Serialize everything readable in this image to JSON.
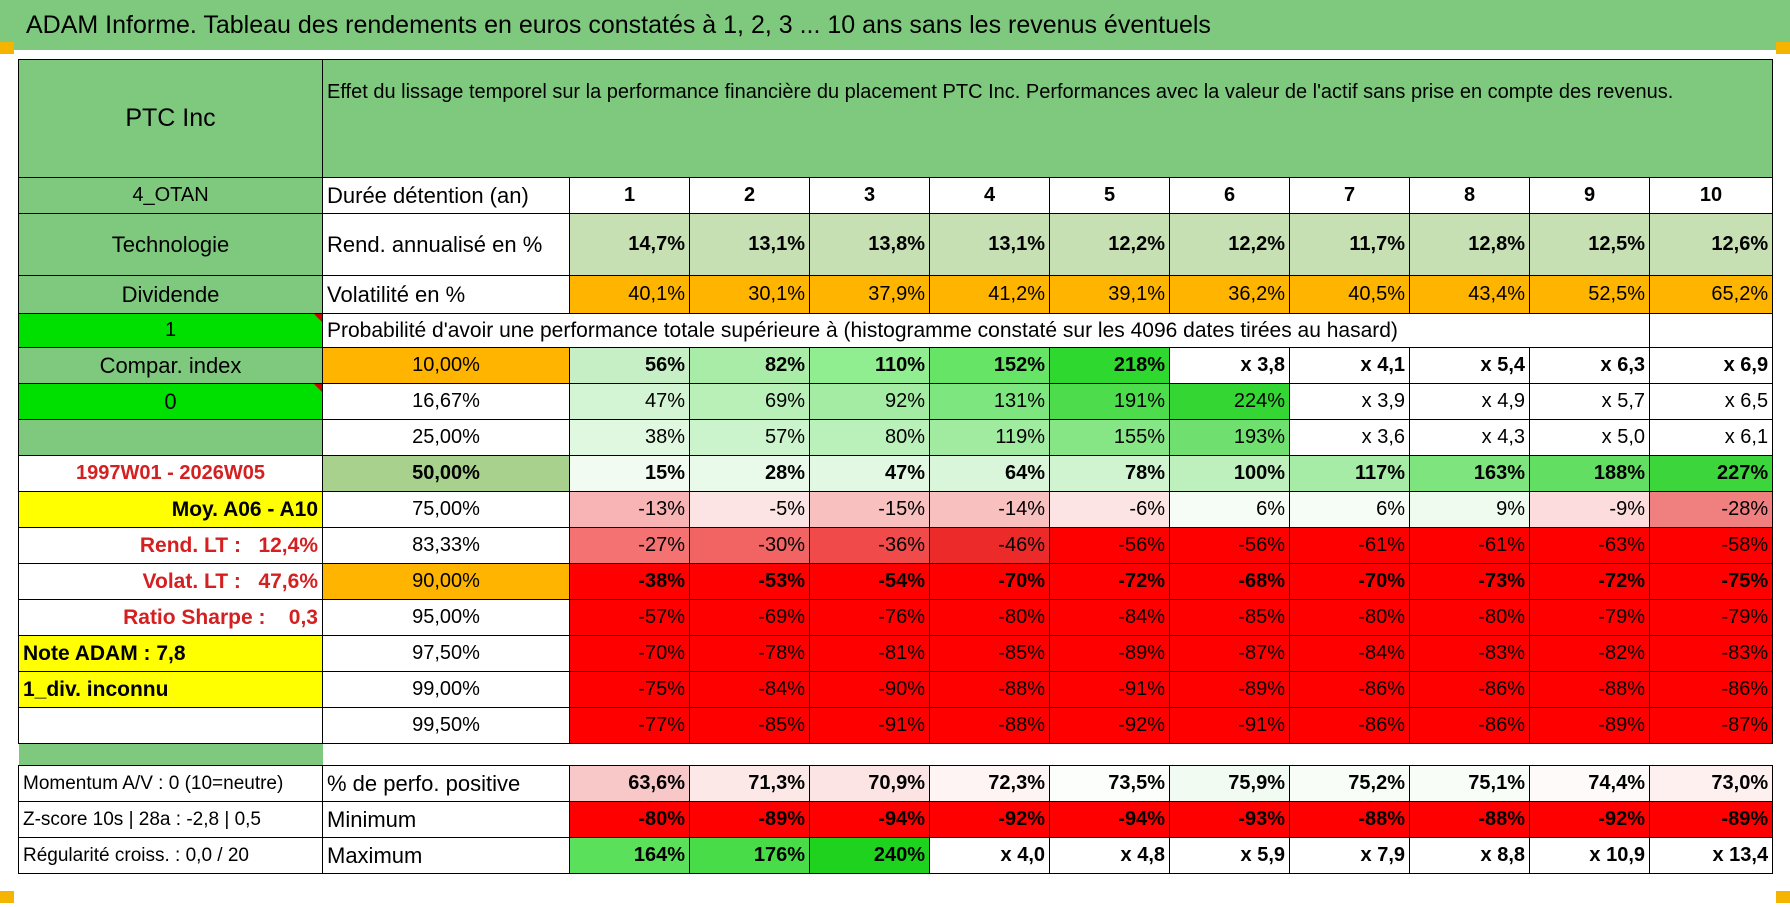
{
  "title": "ADAM Informe. Tableau des rendements en euros constatés à 1, 2, 3 ... 10 ans sans les revenus éventuels",
  "header": {
    "company": "PTC Inc",
    "description": "Effet du lissage temporel sur la performance financière du placement PTC Inc. Performances avec la valeur de l'actif sans prise en compte des revenus."
  },
  "side": {
    "code": "4_OTAN",
    "sector": "Technologie",
    "dividend_label": "Dividende",
    "flag1": "1",
    "compar_index": "Compar. index",
    "flag0": "0",
    "period": "1997W01 - 2026W05",
    "moy": "Moy. A06 - A10",
    "rend_lt_label": "Rend. LT :",
    "rend_lt_value": "12,4%",
    "volat_lt_label": "Volat. LT :",
    "volat_lt_value": "47,6%",
    "sharpe_label": "Ratio Sharpe :",
    "sharpe_value": "0,3",
    "note": "Note ADAM : 7,8",
    "div_unknown": "1_div. inconnu"
  },
  "years": {
    "label": "Durée détention (an)",
    "values": [
      "1",
      "2",
      "3",
      "4",
      "5",
      "6",
      "7",
      "8",
      "9",
      "10"
    ]
  },
  "rend": {
    "label": "Rend. annualisé en %",
    "values": [
      "14,7%",
      "13,1%",
      "13,8%",
      "13,1%",
      "12,2%",
      "12,2%",
      "11,7%",
      "12,8%",
      "12,5%",
      "12,6%"
    ]
  },
  "vol": {
    "label": "Volatilité en %",
    "values": [
      "40,1%",
      "30,1%",
      "37,9%",
      "41,2%",
      "39,1%",
      "36,2%",
      "40,5%",
      "43,4%",
      "52,5%",
      "65,2%"
    ]
  },
  "prob_title": "Probabilité d'avoir une performance totale supérieure à (histogramme constaté sur les 4096 dates tirées au hasard)",
  "prob_rows": [
    {
      "pct": "10,00%",
      "values": [
        "56%",
        "82%",
        "110%",
        "152%",
        "218%",
        "x 3,8",
        "x 4,1",
        "x 5,4",
        "x 6,3",
        "x 6,9"
      ]
    },
    {
      "pct": "16,67%",
      "values": [
        "47%",
        "69%",
        "92%",
        "131%",
        "191%",
        "224%",
        "x 3,9",
        "x 4,9",
        "x 5,7",
        "x 6,5"
      ]
    },
    {
      "pct": "25,00%",
      "values": [
        "38%",
        "57%",
        "80%",
        "119%",
        "155%",
        "193%",
        "x 3,6",
        "x 4,3",
        "x 5,0",
        "x 6,1"
      ]
    },
    {
      "pct": "50,00%",
      "values": [
        "15%",
        "28%",
        "47%",
        "64%",
        "78%",
        "100%",
        "117%",
        "163%",
        "188%",
        "227%"
      ]
    },
    {
      "pct": "75,00%",
      "values": [
        "-13%",
        "-5%",
        "-15%",
        "-14%",
        "-6%",
        "6%",
        "6%",
        "9%",
        "-9%",
        "-28%"
      ]
    },
    {
      "pct": "83,33%",
      "values": [
        "-27%",
        "-30%",
        "-36%",
        "-46%",
        "-56%",
        "-56%",
        "-61%",
        "-61%",
        "-63%",
        "-58%"
      ]
    },
    {
      "pct": "90,00%",
      "values": [
        "-38%",
        "-53%",
        "-54%",
        "-70%",
        "-72%",
        "-68%",
        "-70%",
        "-73%",
        "-72%",
        "-75%"
      ]
    },
    {
      "pct": "95,00%",
      "values": [
        "-57%",
        "-69%",
        "-76%",
        "-80%",
        "-84%",
        "-85%",
        "-80%",
        "-80%",
        "-79%",
        "-79%"
      ]
    },
    {
      "pct": "97,50%",
      "values": [
        "-70%",
        "-78%",
        "-81%",
        "-85%",
        "-89%",
        "-87%",
        "-84%",
        "-83%",
        "-82%",
        "-83%"
      ]
    },
    {
      "pct": "99,00%",
      "values": [
        "-75%",
        "-84%",
        "-90%",
        "-88%",
        "-91%",
        "-89%",
        "-86%",
        "-86%",
        "-88%",
        "-86%"
      ]
    },
    {
      "pct": "99,50%",
      "values": [
        "-77%",
        "-85%",
        "-91%",
        "-88%",
        "-92%",
        "-91%",
        "-86%",
        "-86%",
        "-89%",
        "-87%"
      ]
    }
  ],
  "bottom": [
    {
      "side": "Momentum A/V : 0 (10=neutre)",
      "label": "% de perfo. positive",
      "values": [
        "63,6%",
        "71,3%",
        "70,9%",
        "72,3%",
        "73,5%",
        "75,9%",
        "75,2%",
        "75,1%",
        "74,4%",
        "73,0%"
      ]
    },
    {
      "side": "Z-score 10s | 28a : -2,8 | 0,5",
      "label": "Minimum",
      "values": [
        "-80%",
        "-89%",
        "-94%",
        "-92%",
        "-94%",
        "-93%",
        "-88%",
        "-88%",
        "-92%",
        "-89%"
      ]
    },
    {
      "side": "Régularité croiss. : 0,0 / 20",
      "label": "Maximum",
      "values": [
        "164%",
        "176%",
        "240%",
        "x 4,0",
        "x 4,8",
        "x 5,9",
        "x 7,9",
        "x 8,8",
        "x 10,9",
        "x 13,4"
      ]
    }
  ],
  "colors": {
    "header_green": "#7fc97f",
    "bright_green": "#00e000",
    "orange": "#ffb400",
    "yellow": "#ffff00",
    "red": "#ff0000",
    "text_red": "#d42020"
  }
}
